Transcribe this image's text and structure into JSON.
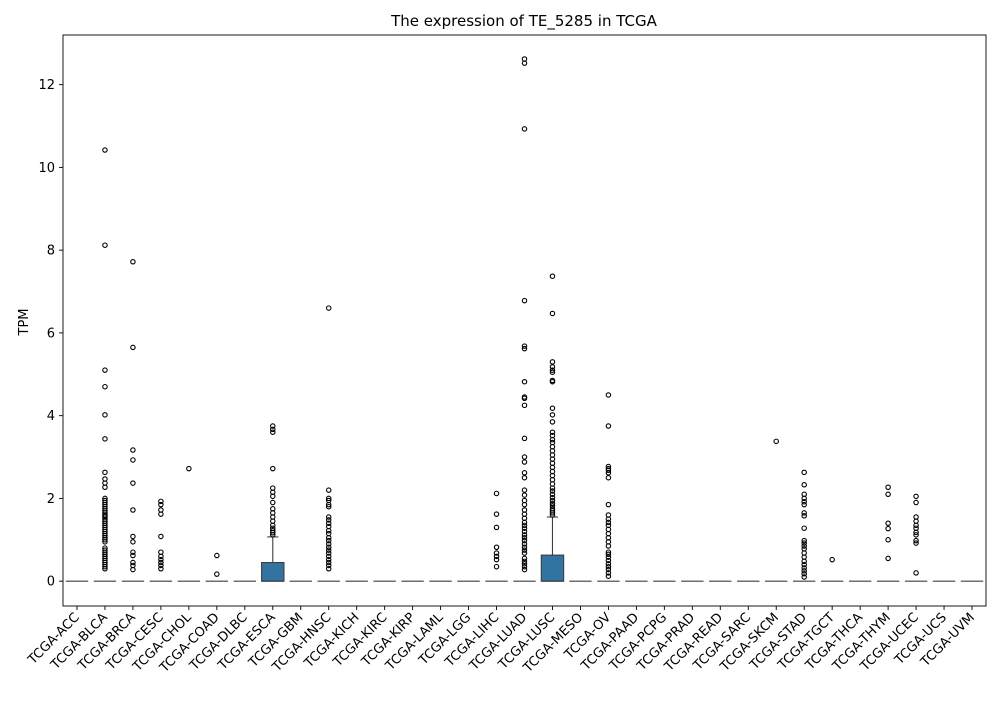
{
  "chart_data": {
    "type": "box",
    "title": "The expression of TE_5285 in TCGA",
    "xlabel": "",
    "ylabel": "TPM",
    "ylim": [
      -0.6,
      13.2
    ],
    "yticks": [
      0,
      2,
      4,
      6,
      8,
      10,
      12
    ],
    "grid": false,
    "box_color": "#3274a1",
    "categories": [
      "TCGA-ACC",
      "TCGA-BLCA",
      "TCGA-BRCA",
      "TCGA-CESC",
      "TCGA-CHOL",
      "TCGA-COAD",
      "TCGA-DLBC",
      "TCGA-ESCA",
      "TCGA-GBM",
      "TCGA-HNSC",
      "TCGA-KICH",
      "TCGA-KIRC",
      "TCGA-KIRP",
      "TCGA-LAML",
      "TCGA-LGG",
      "TCGA-LIHC",
      "TCGA-LUAD",
      "TCGA-LUSC",
      "TCGA-MESO",
      "TCGA-OV",
      "TCGA-PAAD",
      "TCGA-PCPG",
      "TCGA-PRAD",
      "TCGA-READ",
      "TCGA-SARC",
      "TCGA-SKCM",
      "TCGA-STAD",
      "TCGA-TGCT",
      "TCGA-THCA",
      "TCGA-THYM",
      "TCGA-UCEC",
      "TCGA-UCS",
      "TCGA-UVM"
    ],
    "boxes": [
      {
        "q1": 0,
        "median": 0,
        "q3": 0,
        "whisker_low": 0,
        "whisker_high": 0,
        "outliers": []
      },
      {
        "q1": 0,
        "median": 0,
        "q3": 0,
        "whisker_low": 0,
        "whisker_high": 0,
        "outliers": [
          10.42,
          8.12,
          5.1,
          4.7,
          4.02,
          3.44,
          2.63,
          2.47,
          2.37,
          2.27,
          2.0,
          1.95,
          1.9,
          1.85,
          1.8,
          1.75,
          1.7,
          1.65,
          1.6,
          1.58,
          1.55,
          1.5,
          1.45,
          1.4,
          1.35,
          1.3,
          1.25,
          1.2,
          1.15,
          1.1,
          1.05,
          1.0,
          0.95,
          0.8,
          0.75,
          0.7,
          0.65,
          0.6,
          0.55,
          0.5,
          0.45,
          0.4,
          0.35,
          0.3
        ]
      },
      {
        "q1": 0,
        "median": 0,
        "q3": 0,
        "whisker_low": 0,
        "whisker_high": 0,
        "outliers": [
          7.72,
          5.65,
          3.17,
          2.93,
          2.37,
          1.72,
          1.08,
          0.95,
          0.7,
          0.62,
          0.45,
          0.38,
          0.28
        ]
      },
      {
        "q1": 0,
        "median": 0,
        "q3": 0,
        "whisker_low": 0,
        "whisker_high": 0,
        "outliers": [
          1.93,
          1.85,
          1.72,
          1.62,
          1.08,
          0.7,
          0.6,
          0.52,
          0.45,
          0.38,
          0.3
        ]
      },
      {
        "q1": 0,
        "median": 0,
        "q3": 0,
        "whisker_low": 0,
        "whisker_high": 0,
        "outliers": [
          2.72
        ]
      },
      {
        "q1": 0,
        "median": 0,
        "q3": 0,
        "whisker_low": 0,
        "whisker_high": 0,
        "outliers": [
          0.62,
          0.17
        ]
      },
      {
        "q1": 0,
        "median": 0,
        "q3": 0,
        "whisker_low": 0,
        "whisker_high": 0,
        "outliers": []
      },
      {
        "q1": 0,
        "median": 0,
        "q3": 0.45,
        "whisker_low": 0,
        "whisker_high": 1.07,
        "outliers": [
          3.75,
          3.67,
          3.6,
          2.72,
          2.25,
          2.15,
          2.05,
          1.9,
          1.75,
          1.65,
          1.55,
          1.45,
          1.35,
          1.28,
          1.22,
          1.17,
          1.12
        ]
      },
      {
        "q1": 0,
        "median": 0,
        "q3": 0,
        "whisker_low": 0,
        "whisker_high": 0,
        "outliers": []
      },
      {
        "q1": 0,
        "median": 0,
        "q3": 0,
        "whisker_low": 0,
        "whisker_high": 0,
        "outliers": [
          6.6,
          2.2,
          2.0,
          1.95,
          1.85,
          1.8,
          1.55,
          1.48,
          1.4,
          1.32,
          1.22,
          1.15,
          1.05,
          0.98,
          0.9,
          0.82,
          0.75,
          0.68,
          0.6,
          0.52,
          0.45,
          0.38,
          0.3
        ]
      },
      {
        "q1": 0,
        "median": 0,
        "q3": 0,
        "whisker_low": 0,
        "whisker_high": 0,
        "outliers": []
      },
      {
        "q1": 0,
        "median": 0,
        "q3": 0,
        "whisker_low": 0,
        "whisker_high": 0,
        "outliers": []
      },
      {
        "q1": 0,
        "median": 0,
        "q3": 0,
        "whisker_low": 0,
        "whisker_high": 0,
        "outliers": []
      },
      {
        "q1": 0,
        "median": 0,
        "q3": 0,
        "whisker_low": 0,
        "whisker_high": 0,
        "outliers": []
      },
      {
        "q1": 0,
        "median": 0,
        "q3": 0,
        "whisker_low": 0,
        "whisker_high": 0,
        "outliers": []
      },
      {
        "q1": 0,
        "median": 0,
        "q3": 0,
        "whisker_low": 0,
        "whisker_high": 0,
        "outliers": [
          2.12,
          1.62,
          1.3,
          0.82,
          0.68,
          0.6,
          0.52,
          0.35
        ]
      },
      {
        "q1": 0,
        "median": 0,
        "q3": 0,
        "whisker_low": 0,
        "whisker_high": 0,
        "outliers": [
          12.62,
          12.52,
          10.93,
          6.78,
          5.68,
          5.62,
          4.82,
          4.45,
          4.42,
          4.25,
          3.45,
          3.0,
          2.88,
          2.62,
          2.5,
          2.2,
          2.08,
          1.95,
          1.85,
          1.72,
          1.62,
          1.52,
          1.42,
          1.35,
          1.28,
          1.2,
          1.12,
          1.05,
          0.98,
          0.9,
          0.82,
          0.75,
          0.68,
          0.55,
          0.48,
          0.42,
          0.35,
          0.28
        ]
      },
      {
        "q1": 0,
        "median": 0,
        "q3": 0.63,
        "whisker_low": 0,
        "whisker_high": 1.55,
        "outliers": [
          7.37,
          6.47,
          5.3,
          5.18,
          5.1,
          5.05,
          4.85,
          4.82,
          4.18,
          4.02,
          3.85,
          3.6,
          3.52,
          3.42,
          3.35,
          3.25,
          3.15,
          3.05,
          2.95,
          2.85,
          2.75,
          2.65,
          2.55,
          2.45,
          2.35,
          2.25,
          2.18,
          2.1,
          2.02,
          1.95,
          1.88,
          1.82,
          1.75,
          1.7,
          1.65,
          1.6
        ]
      },
      {
        "q1": 0,
        "median": 0,
        "q3": 0,
        "whisker_low": 0,
        "whisker_high": 0,
        "outliers": []
      },
      {
        "q1": 0,
        "median": 0,
        "q3": 0,
        "whisker_low": 0,
        "whisker_high": 0,
        "outliers": [
          4.5,
          3.75,
          2.77,
          2.72,
          2.68,
          2.62,
          2.5,
          1.85,
          1.6,
          1.5,
          1.42,
          1.35,
          1.25,
          1.15,
          1.05,
          0.95,
          0.85,
          0.7,
          0.65,
          0.58,
          0.5,
          0.42,
          0.35,
          0.28,
          0.2,
          0.12
        ]
      },
      {
        "q1": 0,
        "median": 0,
        "q3": 0,
        "whisker_low": 0,
        "whisker_high": 0,
        "outliers": []
      },
      {
        "q1": 0,
        "median": 0,
        "q3": 0,
        "whisker_low": 0,
        "whisker_high": 0,
        "outliers": []
      },
      {
        "q1": 0,
        "median": 0,
        "q3": 0,
        "whisker_low": 0,
        "whisker_high": 0,
        "outliers": []
      },
      {
        "q1": 0,
        "median": 0,
        "q3": 0,
        "whisker_low": 0,
        "whisker_high": 0,
        "outliers": []
      },
      {
        "q1": 0,
        "median": 0,
        "q3": 0,
        "whisker_low": 0,
        "whisker_high": 0,
        "outliers": []
      },
      {
        "q1": 0,
        "median": 0,
        "q3": 0,
        "whisker_low": 0,
        "whisker_high": 0,
        "outliers": [
          3.38
        ]
      },
      {
        "q1": 0,
        "median": 0,
        "q3": 0,
        "whisker_low": 0,
        "whisker_high": 0,
        "outliers": [
          2.63,
          2.33,
          2.1,
          2.0,
          1.92,
          1.85,
          1.65,
          1.58,
          1.28,
          0.98,
          0.92,
          0.85,
          0.78,
          0.68,
          0.58,
          0.48,
          0.4,
          0.32,
          0.25,
          0.18,
          0.1
        ]
      },
      {
        "q1": 0,
        "median": 0,
        "q3": 0,
        "whisker_low": 0,
        "whisker_high": 0,
        "outliers": [
          0.52
        ]
      },
      {
        "q1": 0,
        "median": 0,
        "q3": 0,
        "whisker_low": 0,
        "whisker_high": 0,
        "outliers": []
      },
      {
        "q1": 0,
        "median": 0,
        "q3": 0,
        "whisker_low": 0,
        "whisker_high": 0,
        "outliers": [
          2.27,
          2.1,
          1.4,
          1.27,
          1.0,
          0.55
        ]
      },
      {
        "q1": 0,
        "median": 0,
        "q3": 0,
        "whisker_low": 0,
        "whisker_high": 0,
        "outliers": [
          2.05,
          1.9,
          1.55,
          1.45,
          1.35,
          1.28,
          1.18,
          1.12,
          0.98,
          0.92,
          0.2
        ]
      },
      {
        "q1": 0,
        "median": 0,
        "q3": 0,
        "whisker_low": 0,
        "whisker_high": 0,
        "outliers": []
      },
      {
        "q1": 0,
        "median": 0,
        "q3": 0,
        "whisker_low": 0,
        "whisker_high": 0,
        "outliers": []
      }
    ]
  }
}
